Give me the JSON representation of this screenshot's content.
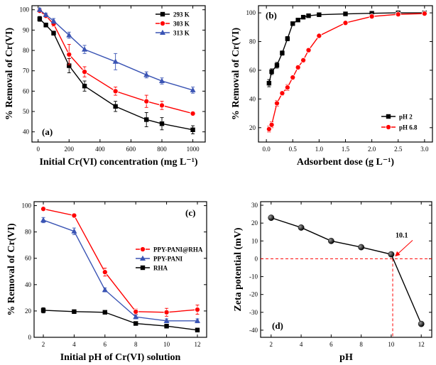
{
  "chart_data": [
    {
      "type": "line",
      "panel_label": "(a)",
      "xlabel": "Initial Cr(VI) concentration (mg L⁻¹)",
      "ylabel": "% Removal of Cr(VI)",
      "xlim": [
        -40,
        1080
      ],
      "ylim": [
        35,
        102
      ],
      "xticks": [
        0,
        200,
        400,
        600,
        800,
        1000
      ],
      "yticks": [
        40,
        50,
        60,
        70,
        80,
        90,
        100
      ],
      "legend_position": "top-right",
      "series": [
        {
          "name": "293 K",
          "color": "#000000",
          "marker": "square",
          "x": [
            10,
            50,
            100,
            200,
            300,
            500,
            700,
            800,
            1000
          ],
          "y": [
            95.5,
            92.5,
            88.5,
            72.5,
            62.5,
            52.5,
            46.0,
            44.0,
            41.0
          ],
          "err": [
            1.2,
            1.0,
            1.0,
            3.5,
            2.5,
            2.5,
            3.5,
            3.0,
            2.0
          ]
        },
        {
          "name": "303 K",
          "color": "#ff0000",
          "marker": "circle",
          "x": [
            10,
            50,
            100,
            200,
            300,
            500,
            700,
            800,
            1000
          ],
          "y": [
            99.5,
            97.0,
            93.0,
            78.0,
            69.5,
            60.0,
            55.0,
            53.0,
            49.0
          ],
          "err": [
            1.0,
            1.0,
            1.2,
            5.0,
            2.5,
            2.0,
            3.0,
            2.0,
            1.0
          ]
        },
        {
          "name": "313 K",
          "color": "#3a54b4",
          "marker": "triangle",
          "x": [
            10,
            50,
            100,
            200,
            300,
            500,
            700,
            800,
            1000
          ],
          "y": [
            100,
            97.5,
            94.5,
            87.5,
            80.5,
            74.5,
            68.0,
            65.0,
            60.5
          ],
          "err": [
            0.8,
            0.8,
            1.2,
            1.5,
            2.0,
            4.0,
            1.5,
            1.5,
            1.5
          ]
        }
      ]
    },
    {
      "type": "line",
      "panel_label": "(b)",
      "xlabel": "Adsorbent dose (g L⁻¹)",
      "ylabel": "% Removal of Cr(VI)",
      "xlim": [
        -0.15,
        3.15
      ],
      "ylim": [
        10,
        105
      ],
      "xticks": [
        0.0,
        0.5,
        1.0,
        1.5,
        2.0,
        2.5,
        3.0
      ],
      "yticks": [
        20,
        40,
        60,
        80,
        100
      ],
      "legend_position": "bottom-right",
      "series": [
        {
          "name": "pH 2",
          "color": "#000000",
          "marker": "square",
          "x": [
            0.05,
            0.1,
            0.2,
            0.3,
            0.4,
            0.5,
            0.6,
            0.7,
            0.8,
            1.0,
            1.5,
            2.0,
            2.5,
            3.0
          ],
          "y": [
            51,
            59,
            63.5,
            72,
            82,
            92.5,
            95,
            97,
            98,
            98.7,
            99.3,
            99.7,
            100,
            100
          ],
          "err": [
            2.5,
            2.0,
            2.0,
            1.5,
            1.5,
            0.8,
            0.8,
            0.5,
            0.5,
            0.5,
            0.3,
            0.3,
            0.2,
            0.2
          ]
        },
        {
          "name": "pH 6.8",
          "color": "#ff0000",
          "marker": "circle",
          "x": [
            0.05,
            0.1,
            0.2,
            0.3,
            0.4,
            0.5,
            0.6,
            0.7,
            0.8,
            1.0,
            1.5,
            2.0,
            2.5,
            3.0
          ],
          "y": [
            19,
            22,
            37,
            44,
            48,
            55,
            62,
            67,
            74,
            84,
            93,
            97.5,
            99,
            99.5
          ],
          "err": [
            2.0,
            2.0,
            2.0,
            1.5,
            2.0,
            1.5,
            1.5,
            1.5,
            1.5,
            1.0,
            0.8,
            0.8,
            0.5,
            0.5
          ]
        }
      ]
    },
    {
      "type": "line",
      "panel_label": "(c)",
      "xlabel": "Initial pH of Cr(VI) solution",
      "ylabel": "% Removal of Cr(VI)",
      "xlim": [
        1.4,
        12.6
      ],
      "ylim": [
        0,
        103
      ],
      "xticks": [
        2,
        4,
        6,
        8,
        10,
        12
      ],
      "yticks": [
        0,
        20,
        40,
        60,
        80,
        100
      ],
      "legend_position": "center-right",
      "series": [
        {
          "name": "PPY-PANI@RHA",
          "color": "#ff0000",
          "marker": "circle",
          "x": [
            2,
            4,
            6,
            8,
            10,
            12
          ],
          "y": [
            97.5,
            92.5,
            49.5,
            19.5,
            19.0,
            21.0
          ],
          "err": [
            1.2,
            1.5,
            3.0,
            2.0,
            3.0,
            3.5
          ]
        },
        {
          "name": "PPY-PANI",
          "color": "#3a54b4",
          "marker": "triangle",
          "x": [
            2,
            4,
            6,
            8,
            10,
            12
          ],
          "y": [
            89.0,
            80.5,
            36.0,
            15.5,
            12.5,
            12.5
          ],
          "err": [
            2.0,
            2.5,
            1.5,
            1.5,
            1.5,
            1.5
          ]
        },
        {
          "name": "RHA",
          "color": "#000000",
          "marker": "square",
          "x": [
            2,
            4,
            6,
            8,
            10,
            12
          ],
          "y": [
            20.5,
            19.5,
            19.0,
            10.5,
            8.5,
            5.5
          ],
          "err": [
            2.0,
            1.0,
            1.0,
            1.0,
            1.5,
            1.5
          ]
        }
      ]
    },
    {
      "type": "line",
      "panel_label": "(d)",
      "xlabel": "pH",
      "ylabel": "Zeta potential (mV)",
      "xlim": [
        1.3,
        12.7
      ],
      "ylim": [
        -44,
        32
      ],
      "xticks": [
        2,
        4,
        6,
        8,
        10,
        12
      ],
      "yticks": [
        -40,
        -30,
        -20,
        -10,
        0,
        10,
        20,
        30
      ],
      "annotation": "10.1",
      "pzc": 10.1,
      "series": [
        {
          "name": "Zeta potential",
          "color": "#000000",
          "marker": "sphere",
          "x": [
            2,
            4,
            6,
            8,
            10,
            12
          ],
          "y": [
            23.0,
            17.5,
            10.0,
            6.5,
            2.5,
            -36.5
          ]
        }
      ]
    }
  ]
}
